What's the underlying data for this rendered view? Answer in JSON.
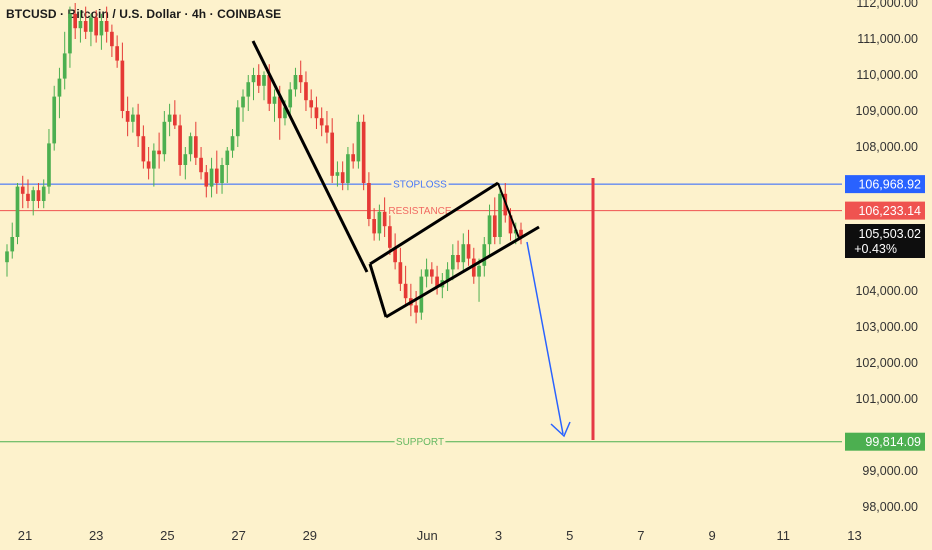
{
  "header": {
    "title": "BTCUSD · Bitcoin / U.S. Dollar · 4h · COINBASE"
  },
  "colors": {
    "background": "#fdf2cc",
    "up": "#4caf50",
    "down": "#e53935",
    "stoploss": "#2962ff",
    "resistance": "#ef5350",
    "support": "#4caf50",
    "target_arrow": "#2962ff",
    "event_line": "#e53945",
    "pattern_lines": "#000000"
  },
  "chart_data": {
    "type": "candlestick",
    "symbol": "BTCUSD",
    "interval": "4h",
    "exchange": "COINBASE",
    "y_axis": {
      "range": [
        97600,
        112000
      ],
      "ticks": [
        "112,000.00",
        "111,000.00",
        "110,000.00",
        "109,000.00",
        "108,000.00",
        "104,000.00",
        "103,000.00",
        "102,000.00",
        "101,000.00",
        "99,000.00",
        "98,000.00"
      ]
    },
    "x_axis": {
      "ticks": [
        "21",
        "23",
        "25",
        "27",
        "29",
        "Jun",
        "3",
        "5",
        "7",
        "9",
        "11",
        "13"
      ]
    },
    "levels": [
      {
        "name": "STOPLOSS",
        "value": 106968.92,
        "label": "106,968.92"
      },
      {
        "name": "RESISTANCE",
        "value": 106233.14,
        "label": "106,233.14"
      },
      {
        "name": "SUPPORT",
        "value": 99814.09,
        "label": "99,814.09"
      }
    ],
    "last_price": {
      "label": "105,503.02",
      "change": "+0.43%"
    },
    "candles": [
      [
        104800,
        105300,
        104400,
        105100
      ],
      [
        105100,
        105900,
        104900,
        105500
      ],
      [
        105500,
        107000,
        105300,
        106900
      ],
      [
        106900,
        107200,
        106300,
        106700
      ],
      [
        106700,
        107100,
        106300,
        106500
      ],
      [
        106500,
        106900,
        106100,
        106800
      ],
      [
        106800,
        107000,
        106300,
        106500
      ],
      [
        106500,
        107100,
        106300,
        106900
      ],
      [
        106900,
        108500,
        106700,
        108100
      ],
      [
        108100,
        109700,
        107900,
        109400
      ],
      [
        109400,
        110200,
        108800,
        109900
      ],
      [
        109900,
        111200,
        109600,
        110600
      ],
      [
        110600,
        111900,
        110200,
        111700
      ],
      [
        111700,
        112000,
        111000,
        111300
      ],
      [
        111300,
        111800,
        110900,
        111500
      ],
      [
        111500,
        111900,
        111000,
        111200
      ],
      [
        111200,
        111700,
        110800,
        111600
      ],
      [
        111600,
        111800,
        110900,
        111100
      ],
      [
        111100,
        111700,
        110700,
        111500
      ],
      [
        111500,
        111900,
        110900,
        111200
      ],
      [
        111200,
        111400,
        110500,
        110800
      ],
      [
        110800,
        111100,
        110200,
        110400
      ],
      [
        110400,
        110900,
        108800,
        109000
      ],
      [
        109000,
        109400,
        108300,
        108700
      ],
      [
        108700,
        109100,
        108400,
        108900
      ],
      [
        108900,
        109200,
        108000,
        108300
      ],
      [
        108300,
        108600,
        107400,
        107600
      ],
      [
        107600,
        108000,
        107100,
        107400
      ],
      [
        107400,
        108100,
        106900,
        107900
      ],
      [
        107900,
        108400,
        107400,
        107800
      ],
      [
        107800,
        109000,
        107600,
        108700
      ],
      [
        108700,
        109200,
        108300,
        108900
      ],
      [
        108900,
        109300,
        108500,
        108600
      ],
      [
        108600,
        108900,
        107200,
        107500
      ],
      [
        107500,
        108000,
        107100,
        107800
      ],
      [
        107800,
        108400,
        107600,
        108300
      ],
      [
        108300,
        108700,
        107500,
        107700
      ],
      [
        107700,
        108000,
        107100,
        107300
      ],
      [
        107300,
        107500,
        106600,
        106900
      ],
      [
        106900,
        107700,
        106600,
        107400
      ],
      [
        107400,
        107900,
        106700,
        107000
      ],
      [
        107000,
        107700,
        106700,
        107500
      ],
      [
        107500,
        108000,
        107000,
        107900
      ],
      [
        107900,
        108500,
        107700,
        108300
      ],
      [
        108300,
        109300,
        108000,
        109100
      ],
      [
        109100,
        109600,
        108700,
        109400
      ],
      [
        109400,
        110000,
        109000,
        109800
      ],
      [
        109800,
        110200,
        109300,
        110000
      ],
      [
        110000,
        110300,
        109500,
        109700
      ],
      [
        109700,
        110100,
        109300,
        110000
      ],
      [
        110000,
        110300,
        109000,
        109200
      ],
      [
        109200,
        109600,
        108700,
        109400
      ],
      [
        109400,
        109700,
        108200,
        108800
      ],
      [
        108800,
        109300,
        108600,
        109100
      ],
      [
        109100,
        109800,
        108900,
        109600
      ],
      [
        109600,
        110200,
        109400,
        110000
      ],
      [
        110000,
        110400,
        109500,
        109800
      ],
      [
        109800,
        110100,
        109000,
        109300
      ],
      [
        109300,
        109600,
        108800,
        109100
      ],
      [
        109100,
        109400,
        108500,
        108800
      ],
      [
        108800,
        109100,
        108300,
        108600
      ],
      [
        108600,
        109000,
        108100,
        108400
      ],
      [
        108400,
        108800,
        107000,
        107200
      ],
      [
        107200,
        107600,
        106900,
        107300
      ],
      [
        107300,
        107600,
        106800,
        107000
      ],
      [
        107000,
        108000,
        106800,
        107800
      ],
      [
        107800,
        108100,
        107400,
        107600
      ],
      [
        107600,
        108900,
        107400,
        108700
      ],
      [
        108700,
        108900,
        106800,
        107000
      ],
      [
        107000,
        107300,
        105800,
        106000
      ],
      [
        106000,
        106300,
        105400,
        105600
      ],
      [
        105600,
        106400,
        105400,
        106200
      ],
      [
        106200,
        106600,
        105500,
        105800
      ],
      [
        105800,
        106100,
        105000,
        105200
      ],
      [
        105200,
        105600,
        104600,
        104800
      ],
      [
        104800,
        105200,
        104000,
        104200
      ],
      [
        104200,
        104700,
        103600,
        103800
      ],
      [
        103800,
        104200,
        103300,
        103600
      ],
      [
        103600,
        104000,
        103100,
        103400
      ],
      [
        103400,
        104600,
        103200,
        104400
      ],
      [
        104400,
        104900,
        104100,
        104600
      ],
      [
        104600,
        104800,
        104200,
        104400
      ],
      [
        104400,
        104700,
        103900,
        104100
      ],
      [
        104100,
        104500,
        103800,
        104300
      ],
      [
        104300,
        104800,
        104000,
        104600
      ],
      [
        104600,
        105300,
        104300,
        105000
      ],
      [
        105000,
        105400,
        104600,
        104800
      ],
      [
        104800,
        105600,
        104500,
        105300
      ],
      [
        105300,
        105700,
        104700,
        104900
      ],
      [
        104900,
        105200,
        104200,
        104400
      ],
      [
        104400,
        104900,
        103700,
        104700
      ],
      [
        104700,
        105500,
        104400,
        105300
      ],
      [
        105300,
        106400,
        105000,
        106100
      ],
      [
        106100,
        106600,
        105300,
        105500
      ],
      [
        105500,
        106800,
        105300,
        106700
      ],
      [
        106700,
        107000,
        105900,
        106100
      ],
      [
        106100,
        106300,
        105400,
        105600
      ],
      [
        105600,
        105900,
        105300,
        105700
      ],
      [
        105700,
        105900,
        105300,
        105500
      ]
    ]
  }
}
